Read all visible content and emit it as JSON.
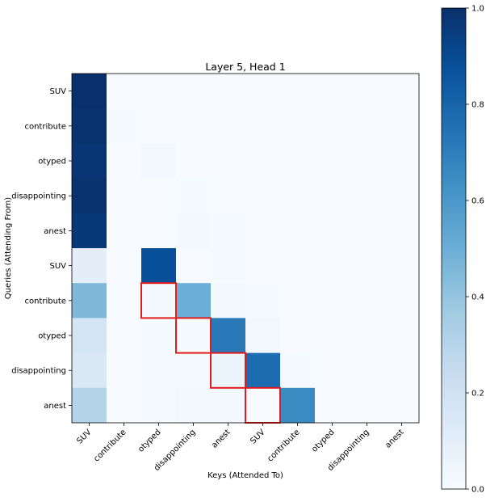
{
  "chart_data": {
    "type": "heatmap",
    "title": "Layer 5, Head 1",
    "xlabel": "Keys (Attended To)",
    "ylabel": "Queries (Attending From)",
    "x_tick_labels": [
      "SUV",
      "contribute",
      "otyped",
      "disappointing",
      "anest",
      "SUV",
      "contribute",
      "otyped",
      "disappointing",
      "anest"
    ],
    "y_tick_labels": [
      "SUV",
      "contribute",
      "otyped",
      "disappointing",
      "anest",
      "SUV",
      "contribute",
      "otyped",
      "disappointing",
      "anest"
    ],
    "values": [
      [
        1.0,
        0.0,
        0.0,
        0.0,
        0.0,
        0.0,
        0.0,
        0.0,
        0.0,
        0.0
      ],
      [
        0.99,
        0.01,
        0.0,
        0.0,
        0.0,
        0.0,
        0.0,
        0.0,
        0.0,
        0.0
      ],
      [
        0.98,
        0.0,
        0.02,
        0.0,
        0.0,
        0.0,
        0.0,
        0.0,
        0.0,
        0.0
      ],
      [
        0.99,
        0.0,
        0.0,
        0.01,
        0.0,
        0.0,
        0.0,
        0.0,
        0.0,
        0.0
      ],
      [
        0.97,
        0.0,
        0.0,
        0.02,
        0.01,
        0.0,
        0.0,
        0.0,
        0.0,
        0.0
      ],
      [
        0.1,
        0.0,
        0.88,
        0.0,
        0.01,
        0.0,
        0.0,
        0.0,
        0.0,
        0.0
      ],
      [
        0.45,
        0.0,
        0.02,
        0.5,
        0.02,
        0.01,
        0.0,
        0.0,
        0.0,
        0.0
      ],
      [
        0.18,
        0.0,
        0.01,
        0.01,
        0.72,
        0.02,
        0.0,
        0.0,
        0.0,
        0.0
      ],
      [
        0.15,
        0.0,
        0.01,
        0.01,
        0.06,
        0.77,
        0.01,
        0.0,
        0.0,
        0.0
      ],
      [
        0.3,
        0.0,
        0.01,
        0.02,
        0.02,
        0.0,
        0.65,
        0.0,
        0.0,
        0.0
      ]
    ],
    "vmin": 0.0,
    "vmax": 1.0,
    "highlighted_cells": [
      [
        6,
        2
      ],
      [
        7,
        3
      ],
      [
        8,
        4
      ],
      [
        9,
        5
      ]
    ],
    "highlight_color": "#e31a1c",
    "colormap": "Blues",
    "colorbar_ticks": [
      "0.0",
      "0.2",
      "0.4",
      "0.6",
      "0.8",
      "1.0"
    ]
  }
}
